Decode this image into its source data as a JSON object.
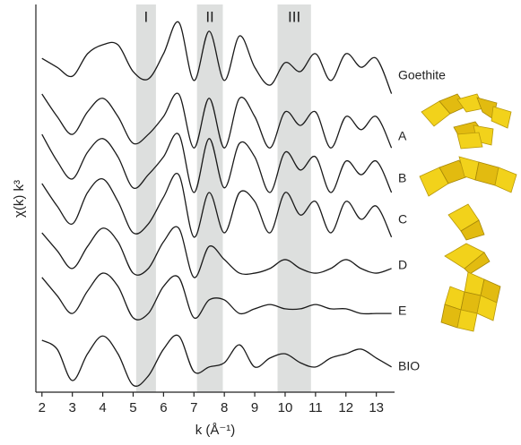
{
  "chart_data": {
    "type": "line",
    "xlabel": "k (Å⁻¹)",
    "ylabel": "χ(k) k³",
    "xlim": [
      1.8,
      13.6
    ],
    "xticks": [
      2,
      3,
      4,
      5,
      6,
      7,
      8,
      9,
      10,
      11,
      12,
      13
    ],
    "ylim": [
      0,
      100
    ],
    "regions": [
      {
        "label": "I",
        "range": [
          5.1,
          5.75
        ]
      },
      {
        "label": "II",
        "range": [
          7.1,
          7.95
        ]
      },
      {
        "label": "III",
        "range": [
          9.75,
          10.85
        ]
      }
    ],
    "region_color": "#dddfde",
    "x": [
      2,
      2.5,
      3,
      3.5,
      4,
      4.5,
      5,
      5.5,
      6,
      6.5,
      7,
      7.5,
      8,
      8.5,
      9,
      9.5,
      10,
      10.5,
      11,
      11.5,
      12,
      12.5,
      13,
      13.5
    ],
    "series": [
      {
        "name": "Goethite",
        "color": "#1a1a1a",
        "values": [
          86.1,
          83.8,
          81.5,
          87.3,
          89.6,
          89.6,
          82.7,
          80.8,
          87.3,
          95.4,
          80.4,
          93.1,
          80.4,
          91.9,
          83.8,
          79.2,
          85.0,
          82.7,
          87.3,
          80.4,
          87.3,
          83.8,
          86.1,
          77.0
        ]
      },
      {
        "name": "A",
        "color": "#1a1a1a",
        "values": [
          76.9,
          71.1,
          66.5,
          72.3,
          75.8,
          71.1,
          64.2,
          66.5,
          71.1,
          76.9,
          63.0,
          75.8,
          63.0,
          75.8,
          71.1,
          63.0,
          72.3,
          68.8,
          72.3,
          63.0,
          71.1,
          67.7,
          71.1,
          63.0
        ]
      },
      {
        "name": "B",
        "color": "#1a1a1a",
        "values": [
          66.5,
          59.6,
          55.0,
          61.9,
          65.4,
          60.7,
          52.7,
          56.1,
          60.7,
          66.5,
          51.5,
          65.4,
          52.7,
          64.2,
          60.7,
          51.5,
          61.9,
          57.3,
          60.7,
          51.5,
          59.6,
          56.1,
          59.6,
          51.5
        ]
      },
      {
        "name": "C",
        "color": "#1a1a1a",
        "values": [
          53.8,
          48.0,
          43.4,
          51.5,
          55.0,
          49.2,
          41.1,
          43.4,
          50.3,
          56.1,
          40.0,
          51.5,
          41.1,
          51.5,
          49.2,
          41.1,
          51.5,
          45.7,
          49.2,
          41.1,
          49.2,
          44.6,
          48.0,
          40.0
        ]
      },
      {
        "name": "D",
        "color": "#1a1a1a",
        "values": [
          41.1,
          36.5,
          31.9,
          37.6,
          42.3,
          38.8,
          30.7,
          31.9,
          38.8,
          42.3,
          29.6,
          37.6,
          34.2,
          30.7,
          30.7,
          31.9,
          34.2,
          31.9,
          30.7,
          31.9,
          34.2,
          31.9,
          30.7,
          31.9
        ]
      },
      {
        "name": "E",
        "color": "#1a1a1a",
        "values": [
          29.6,
          24.9,
          20.3,
          26.1,
          30.7,
          27.3,
          19.2,
          20.3,
          27.3,
          29.6,
          19.2,
          23.8,
          23.8,
          20.3,
          21.5,
          22.6,
          21.5,
          21.5,
          22.6,
          21.5,
          21.5,
          20.3,
          20.3,
          20.3
        ]
      },
      {
        "name": "BIO",
        "color": "#1a1a1a",
        "values": [
          13.4,
          11.1,
          3.0,
          9.9,
          14.5,
          9.9,
          1.8,
          4.2,
          11.1,
          14.5,
          5.3,
          6.5,
          7.6,
          12.2,
          6.5,
          8.8,
          9.9,
          7.6,
          6.5,
          8.8,
          9.9,
          11.1,
          8.8,
          6.5
        ]
      }
    ]
  }
}
